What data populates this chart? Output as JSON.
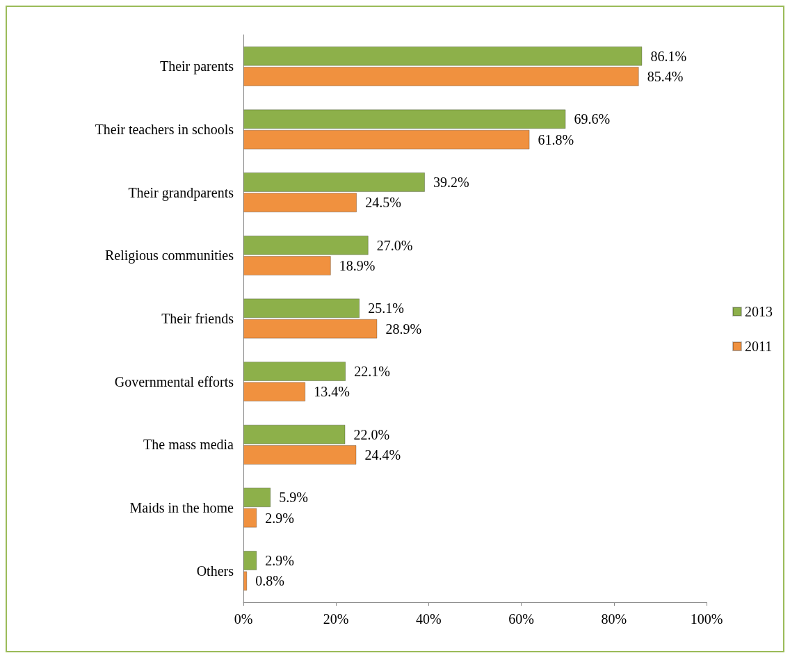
{
  "chart_data": {
    "type": "bar",
    "orientation": "horizontal",
    "categories": [
      "Their parents",
      "Their teachers in schools",
      "Their grandparents",
      "Religious communities",
      "Their friends",
      "Governmental efforts",
      "The mass media",
      "Maids in the home",
      "Others"
    ],
    "series": [
      {
        "name": "2013",
        "color": "#8db04a",
        "values": [
          86.1,
          69.6,
          39.2,
          27.0,
          25.1,
          22.1,
          22.0,
          5.9,
          2.9
        ],
        "value_labels": [
          "86.1%",
          "69.6%",
          "39.2%",
          "27.0%",
          "25.1%",
          "22.1%",
          "22.0%",
          "5.9%",
          "2.9%"
        ]
      },
      {
        "name": "2011",
        "color": "#f0913f",
        "values": [
          85.4,
          61.8,
          24.5,
          18.9,
          28.9,
          13.4,
          24.4,
          2.9,
          0.8
        ],
        "value_labels": [
          "85.4%",
          "61.8%",
          "24.5%",
          "18.9%",
          "28.9%",
          "13.4%",
          "24.4%",
          "2.9%",
          "0.8%"
        ]
      }
    ],
    "xlim": [
      0,
      100
    ],
    "xticks": [
      {
        "value": 0,
        "label": "0%"
      },
      {
        "value": 20,
        "label": "20%"
      },
      {
        "value": 40,
        "label": "40%"
      },
      {
        "value": 60,
        "label": "60%"
      },
      {
        "value": 80,
        "label": "80%"
      },
      {
        "value": 100,
        "label": "100%"
      }
    ],
    "grid": false,
    "legend": "right"
  }
}
